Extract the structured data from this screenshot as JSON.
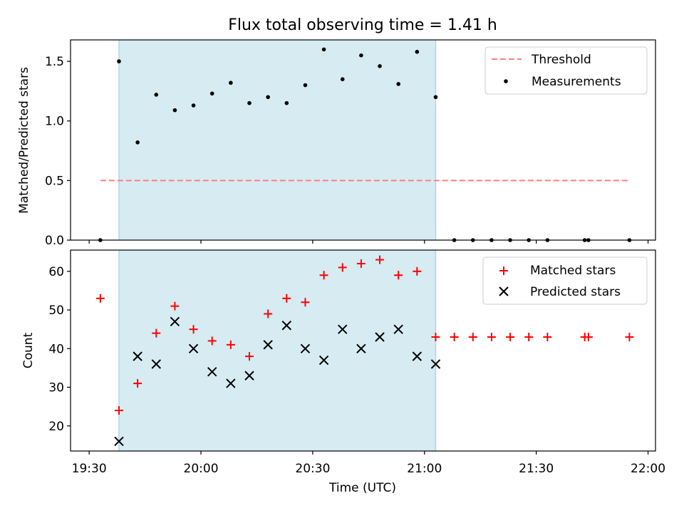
{
  "figure": {
    "title": "Flux total observing time = 1.41 h",
    "xlabel": "Time (UTC)",
    "span_color": "#add8e6",
    "marker_red": "#ff0000",
    "marker_black": "#000000",
    "threshold_color": "#ff7f7f"
  },
  "chart_data": [
    {
      "type": "scatter",
      "title": "Flux total observing time = 1.41 h",
      "xlabel": "",
      "ylabel": "Matched/Predicted stars",
      "ylim": [
        0,
        1.68
      ],
      "yticks": [
        0.0,
        0.5,
        1.0,
        1.5
      ],
      "ytick_labels": [
        "0.0",
        "0.5",
        "1.0",
        "1.5"
      ],
      "xlim": [
        "19:25",
        "22:02"
      ],
      "highlight_span": [
        "19:38",
        "21:03"
      ],
      "legend": {
        "placement": "upper right",
        "entries": [
          "Threshold",
          "Measurements"
        ]
      },
      "threshold": {
        "name": "Threshold",
        "y": 0.5,
        "x_range": [
          "19:33",
          "21:55"
        ],
        "style": "dashed"
      },
      "series": [
        {
          "name": "Measurements",
          "marker": "dot",
          "x": [
            "19:33",
            "19:38",
            "19:43",
            "19:48",
            "19:53",
            "19:58",
            "20:03",
            "20:08",
            "20:13",
            "20:18",
            "20:23",
            "20:28",
            "20:33",
            "20:38",
            "20:43",
            "20:48",
            "20:53",
            "20:58",
            "21:03",
            "21:08",
            "21:13",
            "21:18",
            "21:23",
            "21:28",
            "21:33",
            "21:43",
            "21:44",
            "21:55"
          ],
          "y": [
            0.0,
            1.5,
            0.82,
            1.22,
            1.09,
            1.13,
            1.23,
            1.32,
            1.15,
            1.2,
            1.15,
            1.3,
            1.6,
            1.35,
            1.55,
            1.46,
            1.31,
            1.58,
            1.2,
            0.0,
            0.0,
            0.0,
            0.0,
            0.0,
            0.0,
            0.0,
            0.0,
            0.0
          ]
        }
      ]
    },
    {
      "type": "scatter",
      "xlabel": "Time (UTC)",
      "ylabel": "Count",
      "ylim": [
        13.5,
        65.5
      ],
      "yticks": [
        20,
        30,
        40,
        50,
        60
      ],
      "ytick_labels": [
        "20",
        "30",
        "40",
        "50",
        "60"
      ],
      "xlim": [
        "19:25",
        "22:02"
      ],
      "xticks": [
        "19:30",
        "20:00",
        "20:30",
        "21:00",
        "21:30",
        "22:00"
      ],
      "xtick_labels": [
        "19:30",
        "20:00",
        "20:30",
        "21:00",
        "21:30",
        "22:00"
      ],
      "highlight_span": [
        "19:38",
        "21:03"
      ],
      "legend": {
        "placement": "upper right",
        "entries": [
          "Matched stars",
          "Predicted stars"
        ]
      },
      "series": [
        {
          "name": "Matched stars",
          "marker": "plus",
          "x": [
            "19:33",
            "19:38",
            "19:43",
            "19:48",
            "19:53",
            "19:58",
            "20:03",
            "20:08",
            "20:13",
            "20:18",
            "20:23",
            "20:28",
            "20:33",
            "20:38",
            "20:43",
            "20:48",
            "20:53",
            "20:58",
            "21:03",
            "21:08",
            "21:13",
            "21:18",
            "21:23",
            "21:28",
            "21:33",
            "21:43",
            "21:44",
            "21:55"
          ],
          "y": [
            53,
            24,
            31,
            44,
            51,
            45,
            42,
            41,
            38,
            49,
            53,
            52,
            59,
            61,
            62,
            63,
            59,
            60,
            43,
            43,
            43,
            43,
            43,
            43,
            43,
            43,
            43,
            43
          ]
        },
        {
          "name": "Predicted stars",
          "marker": "x",
          "x": [
            "19:38",
            "19:43",
            "19:48",
            "19:53",
            "19:58",
            "20:03",
            "20:08",
            "20:13",
            "20:18",
            "20:23",
            "20:28",
            "20:33",
            "20:38",
            "20:43",
            "20:48",
            "20:53",
            "20:58",
            "21:03"
          ],
          "y": [
            16,
            38,
            36,
            47,
            40,
            34,
            31,
            33,
            41,
            46,
            40,
            37,
            45,
            40,
            43,
            45,
            38,
            36
          ]
        }
      ]
    }
  ]
}
